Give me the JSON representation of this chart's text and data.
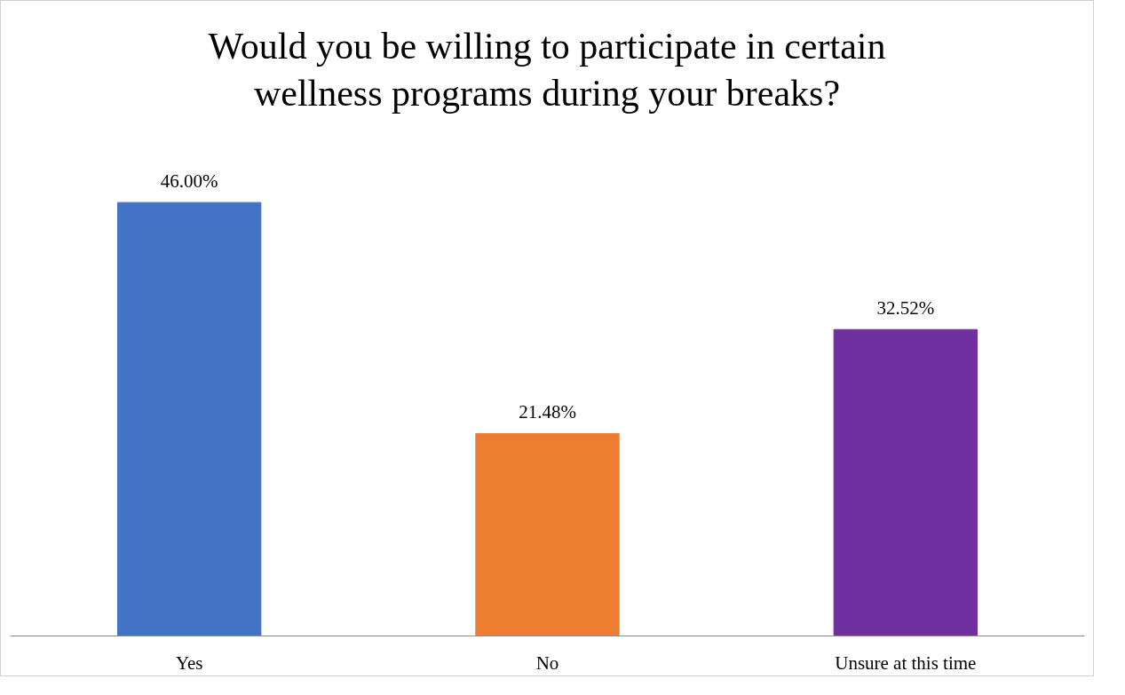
{
  "chart_data": {
    "type": "bar",
    "title": "Would you be willing to participate in certain wellness programs during your breaks?",
    "categories": [
      "Yes",
      "No",
      "Unsure at this time"
    ],
    "values": [
      46.0,
      21.48,
      32.52
    ],
    "colors": [
      "#4472c4",
      "#ed7d31",
      "#7030a0"
    ],
    "value_labels": [
      "46.00%",
      "21.48%",
      "32.52%"
    ],
    "grid": false
  }
}
